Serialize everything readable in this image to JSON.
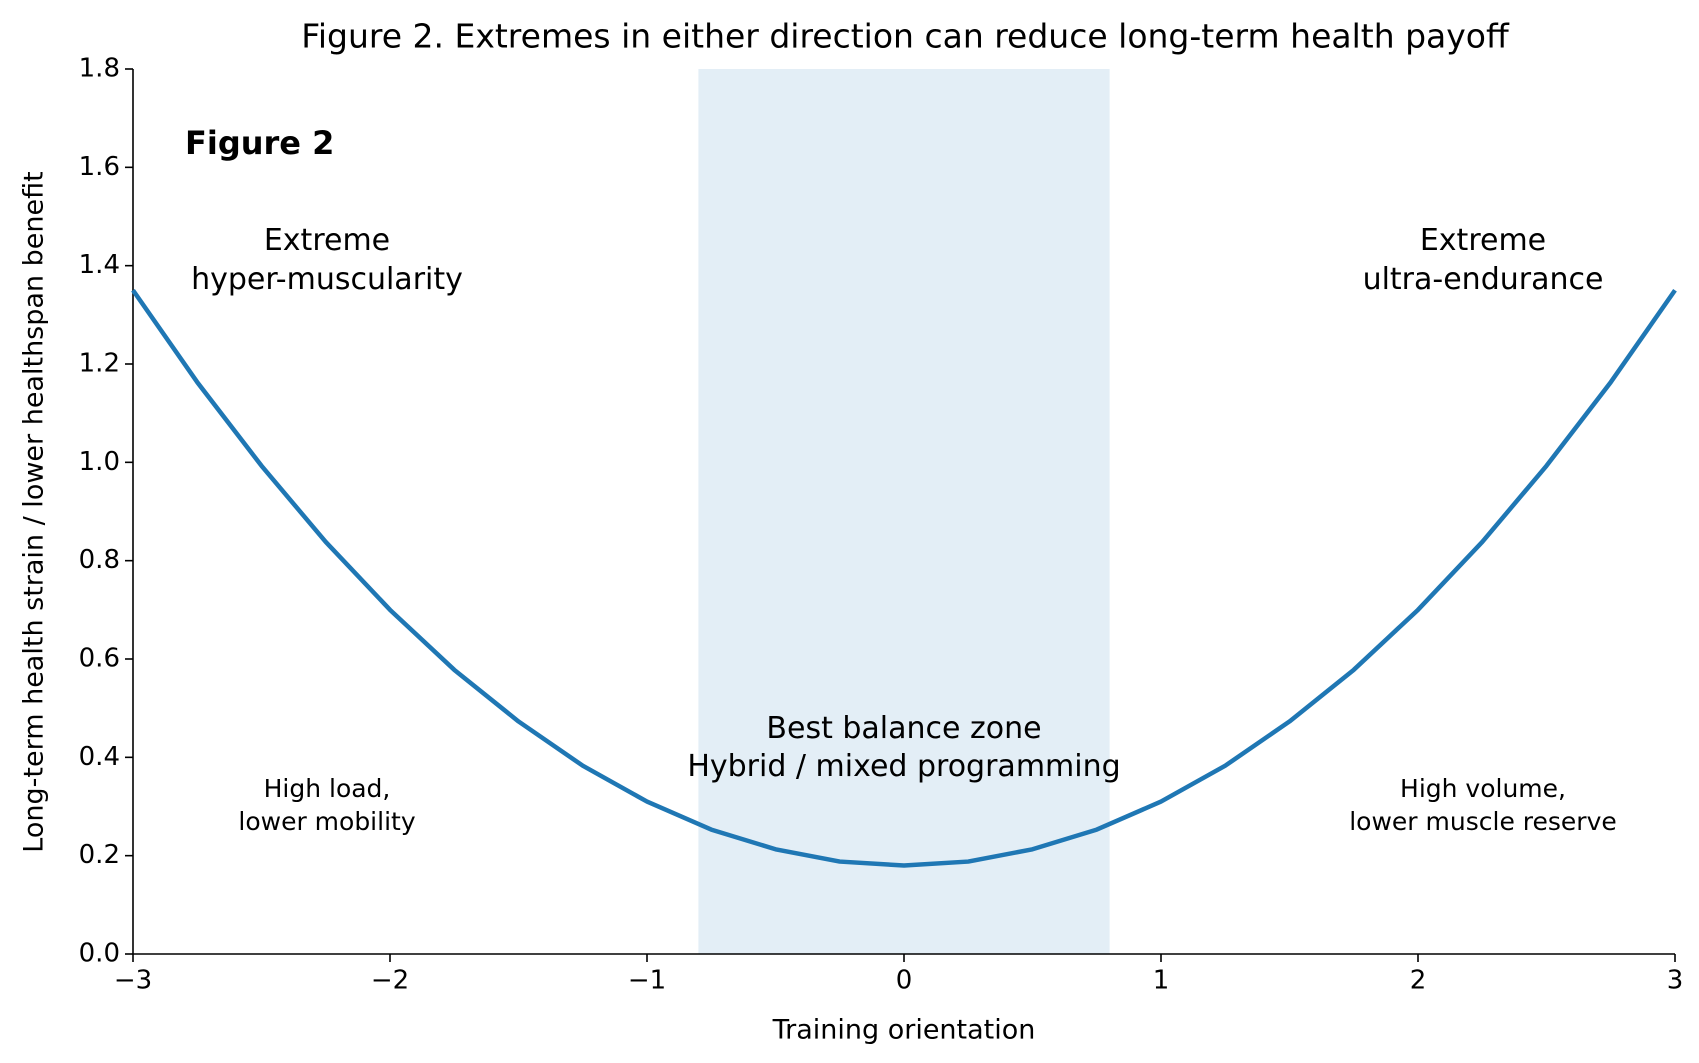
{
  "chart_data": {
    "type": "line",
    "title": "Figure 2. Extremes in either direction can reduce long-term health payoff",
    "x_label": "Training orientation",
    "y_label": "Long-term health strain / lower healthspan benefit",
    "x": [
      -3,
      -2.75,
      -2.5,
      -2.25,
      -2,
      -1.75,
      -1.5,
      -1.25,
      -1,
      -0.75,
      -0.5,
      -0.25,
      0,
      0.25,
      0.5,
      0.75,
      1,
      1.25,
      1.5,
      1.75,
      2,
      2.25,
      2.5,
      2.75,
      3
    ],
    "series": [
      {
        "color": "#1f77b4",
        "values": [
          1.35,
          1.163,
          0.993,
          0.838,
          0.7,
          0.578,
          0.473,
          0.383,
          0.31,
          0.253,
          0.213,
          0.188,
          0.18,
          0.188,
          0.213,
          0.253,
          0.31,
          0.383,
          0.473,
          0.578,
          0.7,
          0.838,
          0.993,
          1.163,
          1.35
        ]
      }
    ],
    "shaded_region": {
      "x": [
        -0.8,
        0.8
      ],
      "color": "#e3eef6"
    },
    "xlim": [
      -3,
      3
    ],
    "ylim": [
      0,
      1.8
    ],
    "xticks": [
      {
        "value": -3,
        "label": "−3"
      },
      {
        "value": -2,
        "label": "−2"
      },
      {
        "value": -1,
        "label": "−1"
      },
      0,
      1,
      2,
      3
    ],
    "yticks": [
      {
        "value": 0,
        "label": "0.0"
      },
      0.2,
      0.4,
      0.6,
      0.8,
      {
        "value": 1,
        "label": "1.0"
      },
      1.2,
      1.4,
      1.6,
      1.8
    ],
    "annotations": [
      {
        "text": "Figure 2"
      },
      {
        "text": "Extreme\nhyper-muscularity"
      },
      {
        "text": "Extreme\nultra-endurance"
      },
      {
        "text": "Best balance zone\nHybrid / mixed programming"
      },
      {
        "text": "High load,\nlower mobility"
      },
      {
        "text": "High volume,\nlower muscle reserve"
      }
    ]
  }
}
